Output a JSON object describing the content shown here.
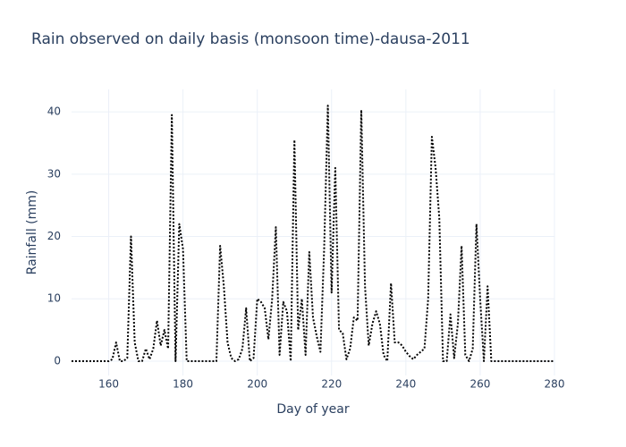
{
  "chart_data": {
    "type": "line",
    "title": "Rain observed on daily basis (monsoon time)-dausa-2011",
    "x_label": "Day of year",
    "y_label": "Rainfall (mm)",
    "x": [
      150,
      151,
      152,
      153,
      154,
      155,
      156,
      157,
      158,
      159,
      160,
      161,
      162,
      163,
      164,
      165,
      166,
      167,
      168,
      169,
      170,
      171,
      172,
      173,
      174,
      175,
      176,
      177,
      178,
      179,
      180,
      181,
      182,
      183,
      184,
      185,
      186,
      187,
      188,
      189,
      190,
      191,
      192,
      193,
      194,
      195,
      196,
      197,
      198,
      199,
      200,
      201,
      202,
      203,
      204,
      205,
      206,
      207,
      208,
      209,
      210,
      211,
      212,
      213,
      214,
      215,
      216,
      217,
      218,
      219,
      220,
      221,
      222,
      223,
      224,
      225,
      226,
      227,
      228,
      229,
      230,
      231,
      232,
      233,
      234,
      235,
      236,
      237,
      238,
      239,
      240,
      241,
      242,
      243,
      244,
      245,
      246,
      247,
      248,
      249,
      250,
      251,
      252,
      253,
      254,
      255,
      256,
      257,
      258,
      259,
      260,
      261,
      262,
      263,
      264,
      265,
      266,
      267,
      268,
      269,
      270,
      271,
      272,
      273,
      274,
      275,
      276,
      277,
      278,
      279,
      280
    ],
    "series": [
      {
        "name": "Rainfall",
        "color": "#000000",
        "dash": "dot",
        "values": [
          0,
          0,
          0,
          0,
          0,
          0,
          0,
          0,
          0,
          0,
          0,
          0.3,
          3,
          0,
          0,
          0.5,
          20,
          3,
          0,
          0,
          2,
          0.3,
          2,
          6.5,
          2.5,
          5,
          2,
          39.5,
          0,
          22,
          18,
          0,
          0,
          0,
          0,
          0,
          0,
          0,
          0,
          0,
          18.5,
          12,
          3,
          0.5,
          0,
          0.3,
          2,
          8.5,
          0,
          0.5,
          10,
          9.5,
          8.5,
          3.5,
          10,
          21.5,
          1,
          9.5,
          8,
          0,
          35.5,
          5,
          10,
          1,
          17.5,
          7,
          4,
          1.5,
          18,
          41,
          11,
          31,
          5,
          4.5,
          0.3,
          2,
          7,
          6.5,
          40.3,
          12,
          2.5,
          6,
          8,
          6,
          1,
          0,
          12.5,
          3,
          3,
          2.5,
          1.5,
          0.8,
          0.3,
          1,
          1.5,
          2,
          10,
          36,
          31,
          23,
          0,
          0,
          7.5,
          0.5,
          6,
          18.5,
          1,
          0,
          2,
          22,
          10,
          0,
          12,
          0,
          0,
          0,
          0,
          0,
          0,
          0,
          0,
          0,
          0,
          0,
          0,
          0,
          0,
          0,
          0,
          0,
          0
        ]
      }
    ],
    "xlim": [
      150,
      280
    ],
    "xticks": [
      160,
      180,
      200,
      220,
      240,
      260,
      280
    ],
    "ylim": [
      -2.3,
      43.6
    ],
    "yticks": [
      0,
      10,
      20,
      30,
      40
    ],
    "grid": true
  }
}
